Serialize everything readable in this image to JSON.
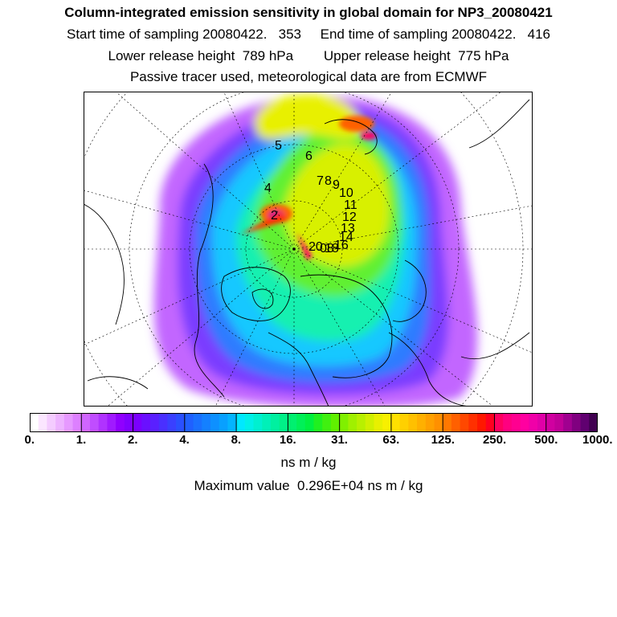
{
  "header": {
    "title": "Column-integrated emission sensitivity in global domain for NP3_20080421",
    "sampling_line": "Start time of sampling 20080422.   353     End time of sampling 20080422.   416",
    "release_line": "Lower release height  789 hPa        Upper release height  775 hPa",
    "tracer_line": "Passive tracer used, meteorological data are from ECMWF"
  },
  "map": {
    "projection": "north-polar-stereographic",
    "markers": [
      "2",
      "4",
      "5",
      "6",
      "7",
      "8",
      "9",
      "10",
      "11",
      "12",
      "13",
      "14",
      "16",
      "18",
      "20",
      "08"
    ]
  },
  "colorbar": {
    "tick_labels": [
      "0.",
      "1.",
      "2.",
      "4.",
      "8.",
      "16.",
      "31.",
      "63.",
      "125.",
      "250.",
      "500.",
      "1000."
    ],
    "colors": [
      "#ffffff",
      "#fbe6ff",
      "#f4ccff",
      "#edb3ff",
      "#e699ff",
      "#dd80ff",
      "#d066ff",
      "#c04dff",
      "#b033ff",
      "#a01aff",
      "#9000ff",
      "#8000ff",
      "#7a00ff",
      "#6a10ff",
      "#5a20ff",
      "#4a30ff",
      "#3a40ff",
      "#2a50ff",
      "#2060ff",
      "#1a70ff",
      "#1480ff",
      "#0e90ff",
      "#08a0ff",
      "#04b4ff",
      "#00e8ff",
      "#00f0e8",
      "#00f0d0",
      "#00f0b8",
      "#00f0a0",
      "#00f088",
      "#00f070",
      "#00f058",
      "#00f040",
      "#20f020",
      "#40f010",
      "#60f000",
      "#80f000",
      "#a0f000",
      "#b8f000",
      "#d0f000",
      "#e8f000",
      "#f8f000",
      "#ffe000",
      "#ffd000",
      "#ffc000",
      "#ffb000",
      "#ffa000",
      "#ff9000",
      "#ff7800",
      "#ff6000",
      "#ff4800",
      "#ff3000",
      "#ff1800",
      "#ff0020",
      "#ff0060",
      "#ff0080",
      "#ff0090",
      "#ff00a0",
      "#f000a8",
      "#e000a8",
      "#d000a0",
      "#c00098",
      "#a00090",
      "#800080",
      "#600070",
      "#400050"
    ]
  },
  "units": "ns m / kg",
  "max_value_text": "Maximum value  0.296E+04 ns m / kg"
}
